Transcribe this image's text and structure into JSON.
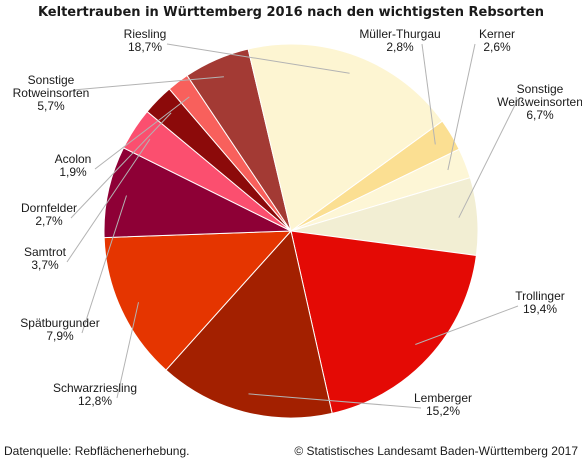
{
  "chart_data": {
    "type": "pie",
    "title": "Keltertrauben in Württemberg 2016 nach den wichtigsten Rebsorten",
    "slices": [
      {
        "name": "Müller-Thurgau",
        "value": 2.8,
        "label": "2,8%",
        "color": "#fbdf92"
      },
      {
        "name": "Kerner",
        "value": 2.6,
        "label": "2,6%",
        "color": "#fdf6d6"
      },
      {
        "name": "Sonstige Weißweinsorten",
        "value": 6.7,
        "label": "6,7%",
        "color": "#f2eed3"
      },
      {
        "name": "Trollinger",
        "value": 19.4,
        "label": "19,4%",
        "color": "#e40a05"
      },
      {
        "name": "Lemberger",
        "value": 15.2,
        "label": "15,2%",
        "color": "#a32000"
      },
      {
        "name": "Schwarzriesling",
        "value": 12.8,
        "label": "12,8%",
        "color": "#e53500"
      },
      {
        "name": "Spätburgunder",
        "value": 7.9,
        "label": "7,9%",
        "color": "#8e0036"
      },
      {
        "name": "Samtrot",
        "value": 3.7,
        "label": "3,7%",
        "color": "#fb4f6f"
      },
      {
        "name": "Dornfelder",
        "value": 2.7,
        "label": "2,7%",
        "color": "#8c0a0a"
      },
      {
        "name": "Acolon",
        "value": 1.9,
        "label": "1,9%",
        "color": "#f8605c"
      },
      {
        "name": "Sonstige Rotweinsorten",
        "value": 5.7,
        "label": "5,7%",
        "color": "#a33a34"
      },
      {
        "name": "Riesling",
        "value": 18.7,
        "label": "18,7%",
        "color": "#fdf5d2"
      }
    ]
  },
  "footer": {
    "source": "Datenquelle: Rebflächenerhebung.",
    "copyright": "© Statistisches Landesamt Baden-Württemberg 2017"
  }
}
